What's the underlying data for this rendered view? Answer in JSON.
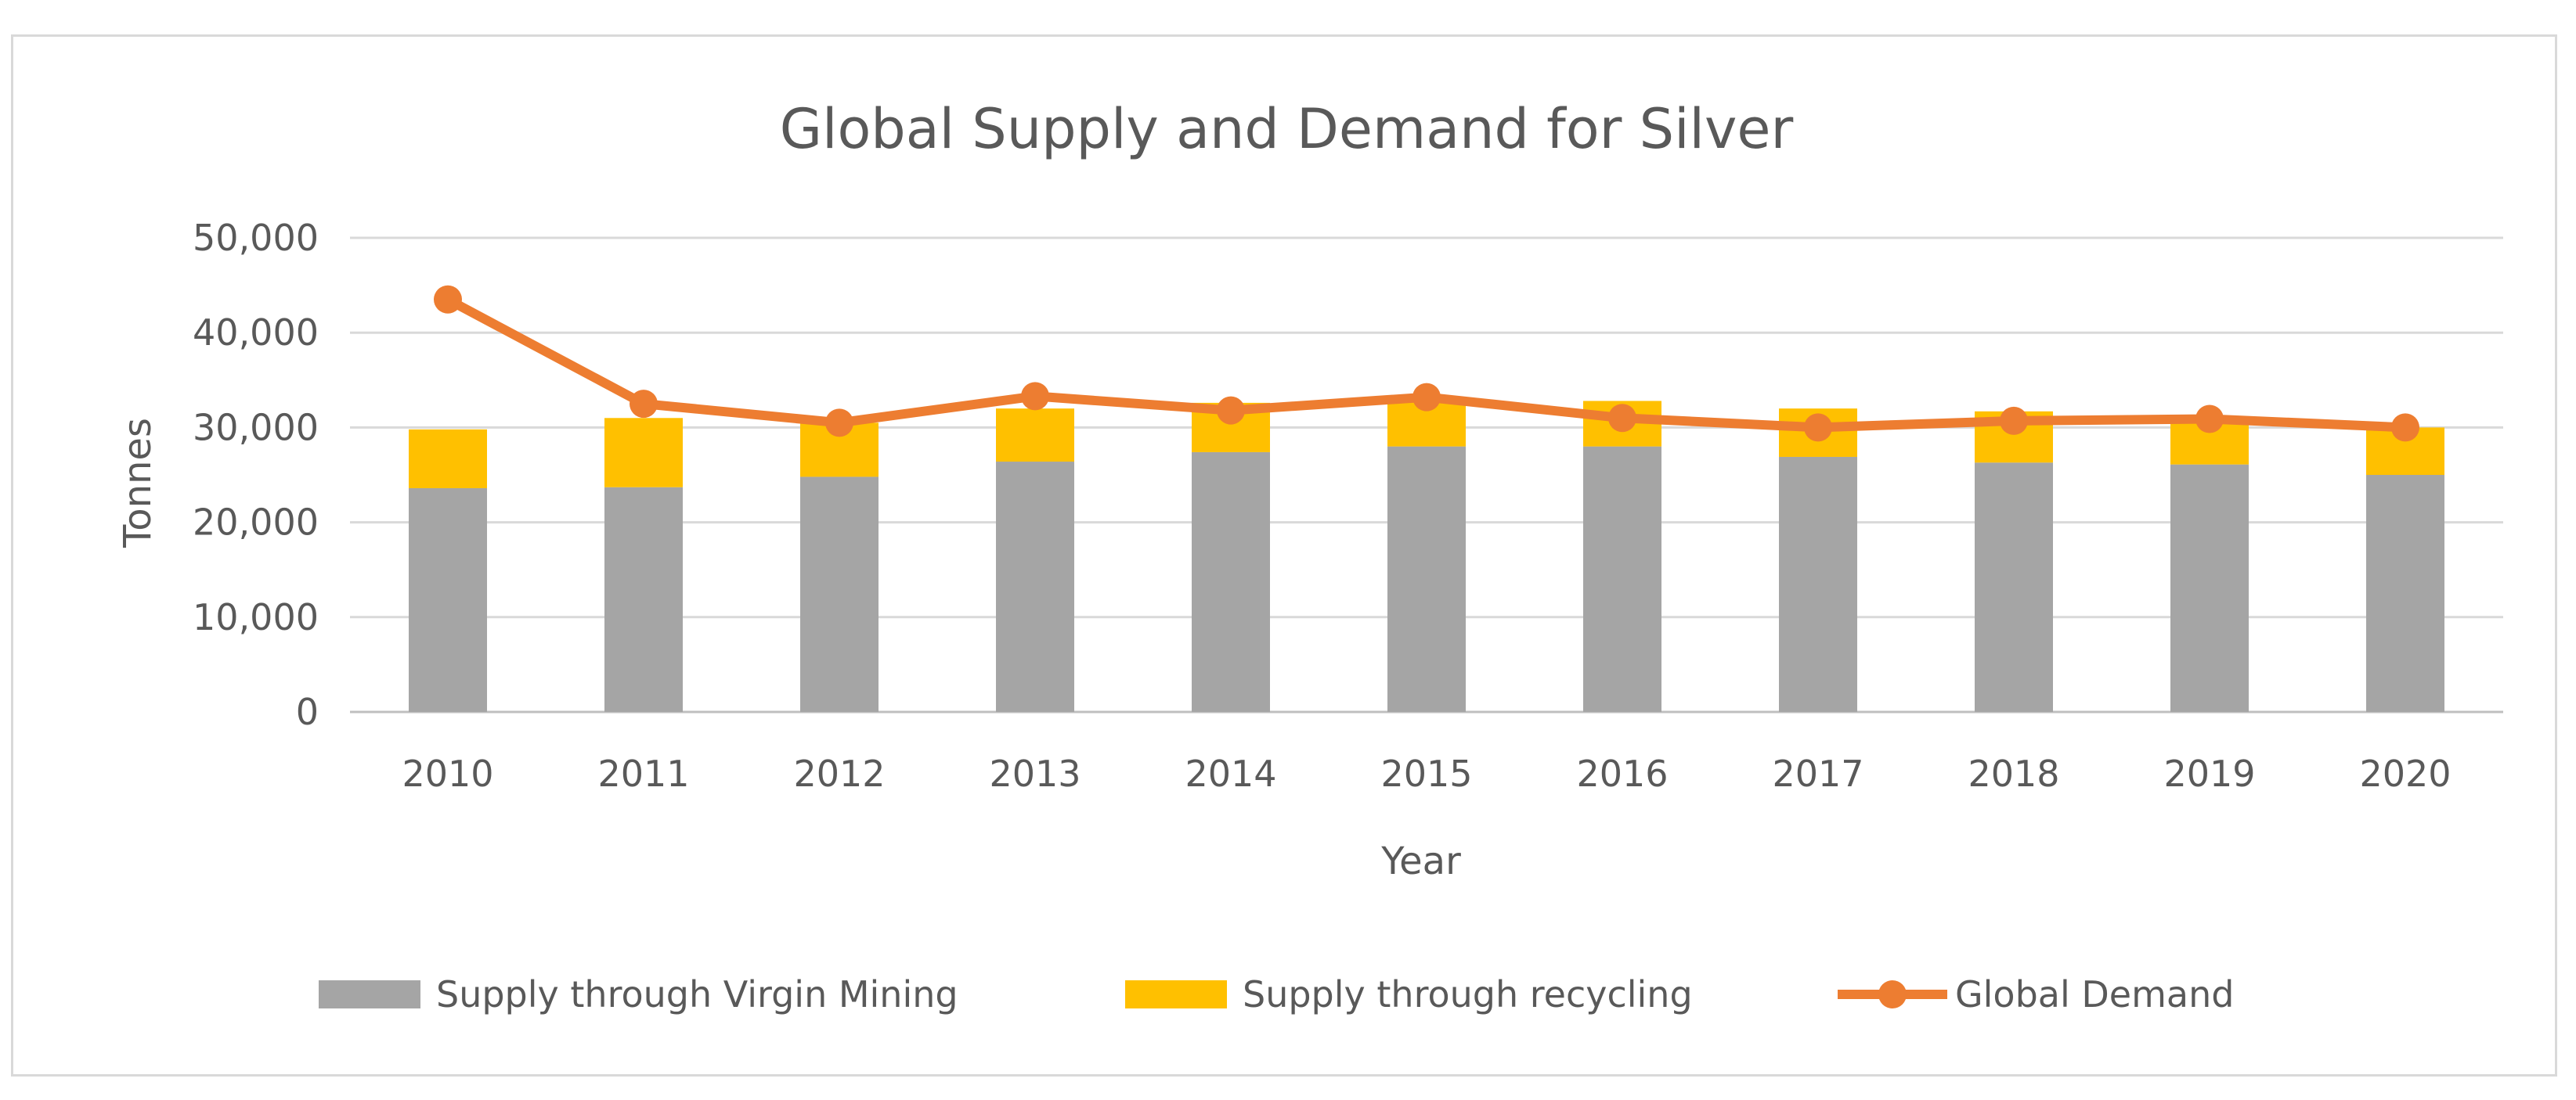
{
  "chart_data": {
    "type": "bar",
    "stacked": true,
    "title": "Global Supply and Demand for Silver",
    "xlabel": "Year",
    "ylabel": "Tonnes",
    "ylim": [
      0,
      50000
    ],
    "ytick_values": [
      0,
      10000,
      20000,
      30000,
      40000,
      50000
    ],
    "ytick_labels": [
      "0",
      "10,000",
      "20,000",
      "30,000",
      "40,000",
      "50,000"
    ],
    "categories": [
      "2010",
      "2011",
      "2012",
      "2013",
      "2014",
      "2015",
      "2016",
      "2017",
      "2018",
      "2019",
      "2020"
    ],
    "grid": true,
    "legend_position": "bottom",
    "series": [
      {
        "name": "Supply through Virgin Mining",
        "type": "bar",
        "color": "#a5a5a5",
        "values": [
          23600,
          23700,
          24800,
          26400,
          27400,
          28000,
          28000,
          26900,
          26300,
          26100,
          25000
        ]
      },
      {
        "name": "Supply through recycling",
        "type": "bar",
        "color": "#ffc000",
        "values": [
          6200,
          7300,
          5700,
          5600,
          5200,
          4800,
          4800,
          5100,
          5400,
          4700,
          5000
        ]
      },
      {
        "name": "Global Demand",
        "type": "line",
        "color": "#ed7d31",
        "values": [
          43500,
          32500,
          30500,
          33300,
          31800,
          33200,
          31000,
          30000,
          30700,
          30900,
          30000
        ]
      }
    ]
  }
}
